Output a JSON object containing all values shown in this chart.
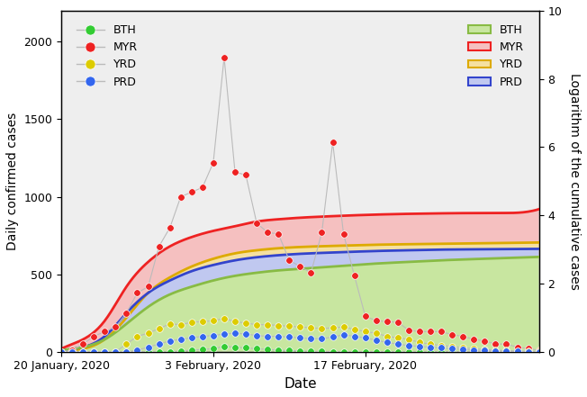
{
  "title": "",
  "xlabel": "Date",
  "ylabel_left": "Daily confirmed cases",
  "ylabel_right": "Logarithm of the cumulative cases",
  "ylim_left": [
    0,
    2200
  ],
  "ylim_right": [
    0,
    10
  ],
  "yticks_left": [
    0,
    500,
    1000,
    1500,
    2000
  ],
  "yticks_right": [
    0,
    2,
    4,
    6,
    8,
    10
  ],
  "xtick_labels": [
    "20 January, 2020",
    "3 February, 2020",
    "17 February, 2020"
  ],
  "start_date": "2020-01-20",
  "n_days": 45,
  "regions": [
    "BTH",
    "MYR",
    "YRD",
    "PRD"
  ],
  "scatter_colors": [
    "#33cc33",
    "#ee2222",
    "#ddcc00",
    "#3366ee"
  ],
  "line_colors_scatter": [
    "#bbbbbb",
    "#bbbbbb",
    "#bbbbbb",
    "#bbbbbb"
  ],
  "band_colors": [
    "#c8e6a0",
    "#f5c0c0",
    "#f5e0a0",
    "#c0c8f0"
  ],
  "band_edge_colors": [
    "#88bb44",
    "#ee2222",
    "#ddaa00",
    "#3344cc"
  ],
  "band_alpha": 1.0,
  "bg_color": "#eeeeee",
  "scatter_BTH": [
    0,
    0,
    0,
    0,
    0,
    0,
    0,
    0,
    0,
    0,
    0,
    5,
    10,
    15,
    20,
    35,
    30,
    25,
    20,
    15,
    10,
    8,
    5,
    3,
    2,
    1,
    0,
    0,
    0,
    0,
    0,
    0,
    0,
    0,
    0,
    0,
    0,
    0,
    0,
    0,
    0,
    0,
    0,
    0,
    0
  ],
  "scatter_MYR": [
    0,
    10,
    50,
    100,
    130,
    160,
    250,
    380,
    420,
    680,
    800,
    1000,
    1030,
    1060,
    1220,
    1900,
    1160,
    1140,
    830,
    770,
    760,
    590,
    550,
    510,
    770,
    1350,
    760,
    490,
    230,
    200,
    195,
    190,
    140,
    130,
    130,
    130,
    110,
    100,
    80,
    70,
    50,
    50,
    30,
    20,
    10
  ],
  "scatter_YRD": [
    0,
    0,
    0,
    0,
    0,
    0,
    50,
    100,
    120,
    150,
    180,
    175,
    190,
    195,
    200,
    215,
    195,
    185,
    175,
    175,
    170,
    165,
    160,
    155,
    150,
    155,
    160,
    145,
    130,
    120,
    100,
    90,
    80,
    60,
    50,
    40,
    35,
    25,
    20,
    15,
    10,
    8,
    5,
    3,
    2
  ],
  "scatter_PRD": [
    0,
    0,
    0,
    0,
    0,
    0,
    0,
    10,
    30,
    50,
    70,
    80,
    90,
    100,
    105,
    115,
    120,
    115,
    105,
    100,
    100,
    95,
    90,
    85,
    85,
    95,
    110,
    100,
    90,
    75,
    60,
    50,
    40,
    35,
    30,
    25,
    20,
    15,
    10,
    8,
    5,
    3,
    2,
    1,
    0
  ],
  "smooth_BTH_x": [
    0,
    2,
    4,
    6,
    8,
    10,
    12,
    14,
    16,
    18,
    20,
    22,
    24,
    26,
    28,
    30,
    32,
    34,
    36,
    38,
    40,
    42,
    44
  ],
  "smooth_BTH_y": [
    10,
    30,
    80,
    180,
    290,
    370,
    420,
    460,
    490,
    510,
    525,
    535,
    545,
    555,
    565,
    573,
    580,
    587,
    593,
    598,
    603,
    608,
    612
  ],
  "smooth_MYR_x": [
    0,
    2,
    4,
    6,
    8,
    10,
    12,
    14,
    16,
    18,
    20,
    22,
    24,
    26,
    28,
    30,
    32,
    34,
    36,
    38,
    40,
    42,
    44
  ],
  "smooth_MYR_y": [
    20,
    80,
    200,
    420,
    580,
    680,
    740,
    780,
    810,
    840,
    855,
    865,
    872,
    878,
    883,
    887,
    890,
    892,
    894,
    895,
    896,
    897,
    920
  ],
  "smooth_YRD_x": [
    0,
    2,
    4,
    6,
    8,
    10,
    12,
    14,
    16,
    18,
    20,
    22,
    24,
    26,
    28,
    30,
    32,
    34,
    36,
    38,
    40,
    42,
    44
  ],
  "smooth_YRD_y": [
    5,
    20,
    80,
    220,
    380,
    480,
    550,
    600,
    635,
    655,
    668,
    676,
    681,
    685,
    689,
    692,
    694,
    696,
    698,
    700,
    702,
    704,
    705
  ],
  "smooth_PRD_x": [
    0,
    2,
    4,
    6,
    8,
    10,
    12,
    14,
    16,
    18,
    20,
    22,
    24,
    26,
    28,
    30,
    32,
    34,
    36,
    38,
    40,
    42,
    44
  ],
  "smooth_PRD_y": [
    8,
    30,
    100,
    250,
    380,
    460,
    520,
    560,
    590,
    610,
    623,
    632,
    638,
    643,
    648,
    652,
    655,
    658,
    660,
    661,
    662,
    663,
    664
  ]
}
